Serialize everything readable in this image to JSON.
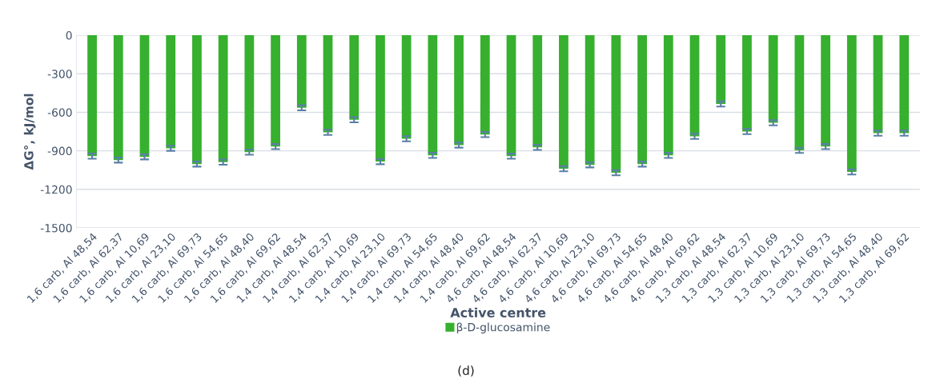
{
  "chart_data": {
    "type": "bar",
    "categories": [
      "1,6 carb, Al 48,54",
      "1,6 carb, Al 62,37",
      "1,6 carb, Al 10,69",
      "1,6 carb, Al 23,10",
      "1,6 carb, Al 69,73",
      "1,6 carb, Al 54,65",
      "1,6 carb, Al 48,40",
      "1,6 carb, Al 69,62",
      "1,4 carb, Al 48,54",
      "1,4 carb, Al 62,37",
      "1,4 carb, Al 10,69",
      "1,4 carb, Al 23,10",
      "1,4 carb, Al 69,73",
      "1,4 carb, Al 54,65",
      "1,4 carb, Al 48,40",
      "1,4 carb, Al 69,62",
      "4,6 carb, Al 48,54",
      "4,6 carb, Al 62,37",
      "4,6 carb, Al 10,69",
      "4,6 carb, Al 23,10",
      "4,6 carb, Al 69,73",
      "4,6 carb, Al 54,65",
      "4,6 carb, Al 48,40",
      "4,6 carb, Al 69,62",
      "1,3 carb, Al 48,54",
      "1,3 carb, Al 62,37",
      "1,3 carb, Al 10,69",
      "1,3 carb, Al 23,10",
      "1,3 carb, Al 69,73",
      "1,3 carb, Al 54,65",
      "1,3 carb, Al 48,40",
      "1,3 carb, Al 69,62"
    ],
    "series": [
      {
        "name": "β-D-glucosamine",
        "color": "#36b02e",
        "values": [
          -941,
          -972,
          -947,
          -880,
          -1003,
          -988,
          -910,
          -867,
          -565,
          -756,
          -658,
          -984,
          -806,
          -935,
          -855,
          -773,
          -941,
          -873,
          -1040,
          -1009,
          -1071,
          -1003,
          -935,
          -787,
          -535,
          -750,
          -682,
          -896,
          -867,
          -1064,
          -762,
          -762
        ],
        "errors": [
          20,
          20,
          20,
          20,
          20,
          20,
          20,
          20,
          20,
          20,
          20,
          20,
          20,
          20,
          20,
          20,
          20,
          20,
          20,
          20,
          20,
          20,
          20,
          20,
          20,
          20,
          20,
          20,
          20,
          20,
          20,
          20
        ]
      }
    ],
    "xlabel": "Active centre",
    "ylabel": "ΔG°, kJ/mol",
    "ylim": [
      -1500,
      0
    ],
    "yticks": [
      -1500,
      -1200,
      -900,
      -600,
      -300,
      0
    ],
    "grid": "y",
    "legend": "bottom",
    "annotations": [
      "(d)"
    ]
  }
}
